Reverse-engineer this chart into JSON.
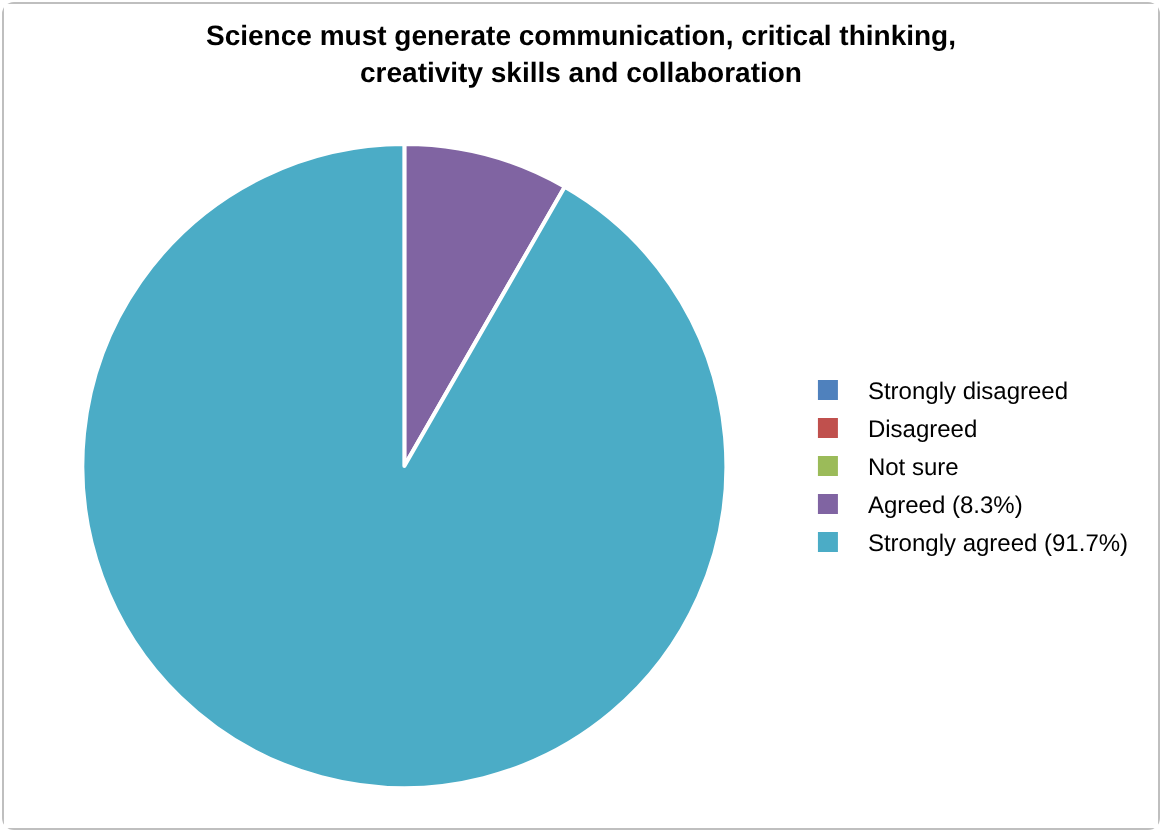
{
  "chart_data": {
    "type": "pie",
    "title": "Science must generate communication, critical thinking,\ncreativity skills and collaboration",
    "categories": [
      "Strongly disagreed",
      "Disagreed",
      "Not sure",
      "Agreed (8.3%)",
      "Strongly agreed (91.7%)"
    ],
    "values": [
      0,
      0,
      0,
      8.3,
      91.7
    ],
    "colors": [
      "#4f81bd",
      "#c0504d",
      "#9bbb59",
      "#8064a2",
      "#4bacc6"
    ],
    "legend": "right"
  }
}
